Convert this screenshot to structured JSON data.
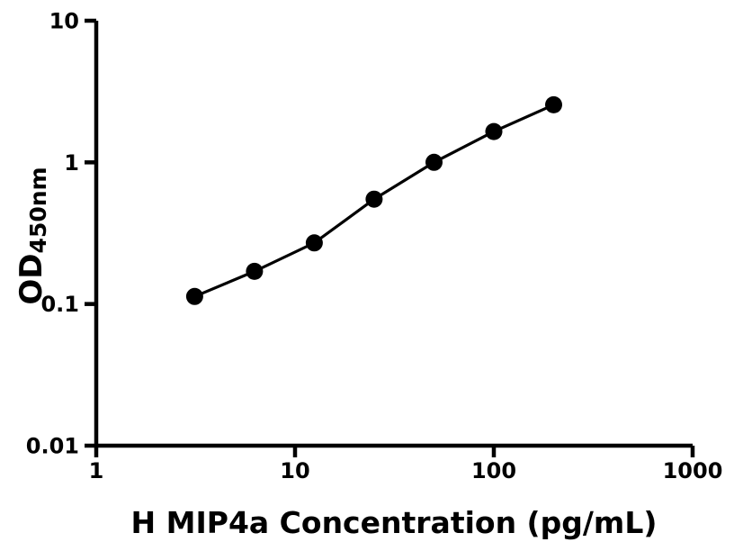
{
  "figure": {
    "background": "#ffffff",
    "ink_color": "#000000"
  },
  "chart_data": {
    "type": "scatter",
    "style": "line-connected-scatter",
    "title": "",
    "xlabel": "H MIP4a Concentration (pg/mL)",
    "ylabel": "OD450nm",
    "ylabel_main": "OD",
    "ylabel_sub": "450nm",
    "xscale": "log",
    "yscale": "log",
    "xlim": [
      1,
      1000
    ],
    "ylim": [
      0.01,
      10
    ],
    "x_tick_values": [
      1,
      10,
      100,
      1000
    ],
    "x_tick_labels": [
      "1",
      "10",
      "100",
      "1000"
    ],
    "y_tick_values": [
      0.01,
      0.1,
      1,
      10
    ],
    "y_tick_labels": [
      "0.01",
      "0.1",
      "1",
      "10"
    ],
    "grid": false,
    "legend": null,
    "series": [
      {
        "marker": "filled-circle",
        "marker_color": "#000000",
        "line_color": "#000000",
        "points": [
          {
            "x": 3.125,
            "y": 0.113
          },
          {
            "x": 6.25,
            "y": 0.17
          },
          {
            "x": 12.5,
            "y": 0.27
          },
          {
            "x": 25,
            "y": 0.55
          },
          {
            "x": 50,
            "y": 1.0
          },
          {
            "x": 100,
            "y": 1.65
          },
          {
            "x": 200,
            "y": 2.55
          }
        ]
      }
    ]
  }
}
